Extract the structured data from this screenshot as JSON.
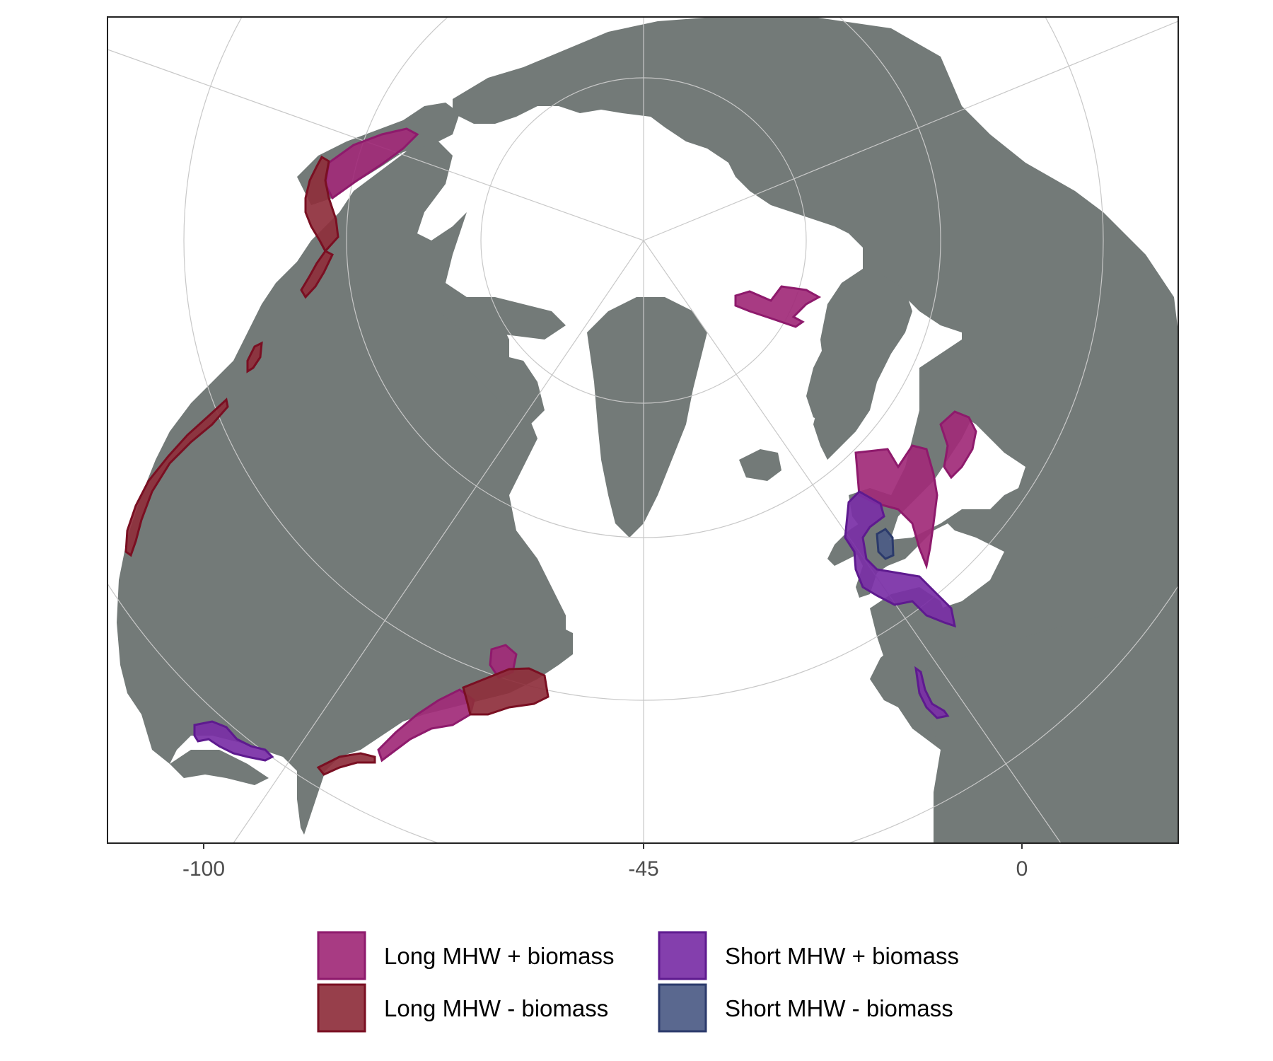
{
  "map": {
    "x_axis_ticks": [
      "-100",
      "-45",
      "0"
    ],
    "colors": {
      "land": "#737a78",
      "ocean": "#ffffff",
      "long_plus": "#a12a78",
      "long_plus_border": "#8e1a6c",
      "long_minus": "#8e2f3c",
      "long_minus_border": "#7a0f22",
      "short_plus": "#7a2fa6",
      "short_plus_border": "#5e1a8f",
      "short_minus": "#4c5b86",
      "short_minus_border": "#2b3a6b"
    }
  },
  "legend": {
    "items": [
      {
        "label": "Long MHW + biomass",
        "category": "long_plus"
      },
      {
        "label": "Long MHW - biomass",
        "category": "long_minus"
      },
      {
        "label": "Short MHW + biomass",
        "category": "short_plus"
      },
      {
        "label": "Short MHW - biomass",
        "category": "short_minus"
      }
    ]
  }
}
